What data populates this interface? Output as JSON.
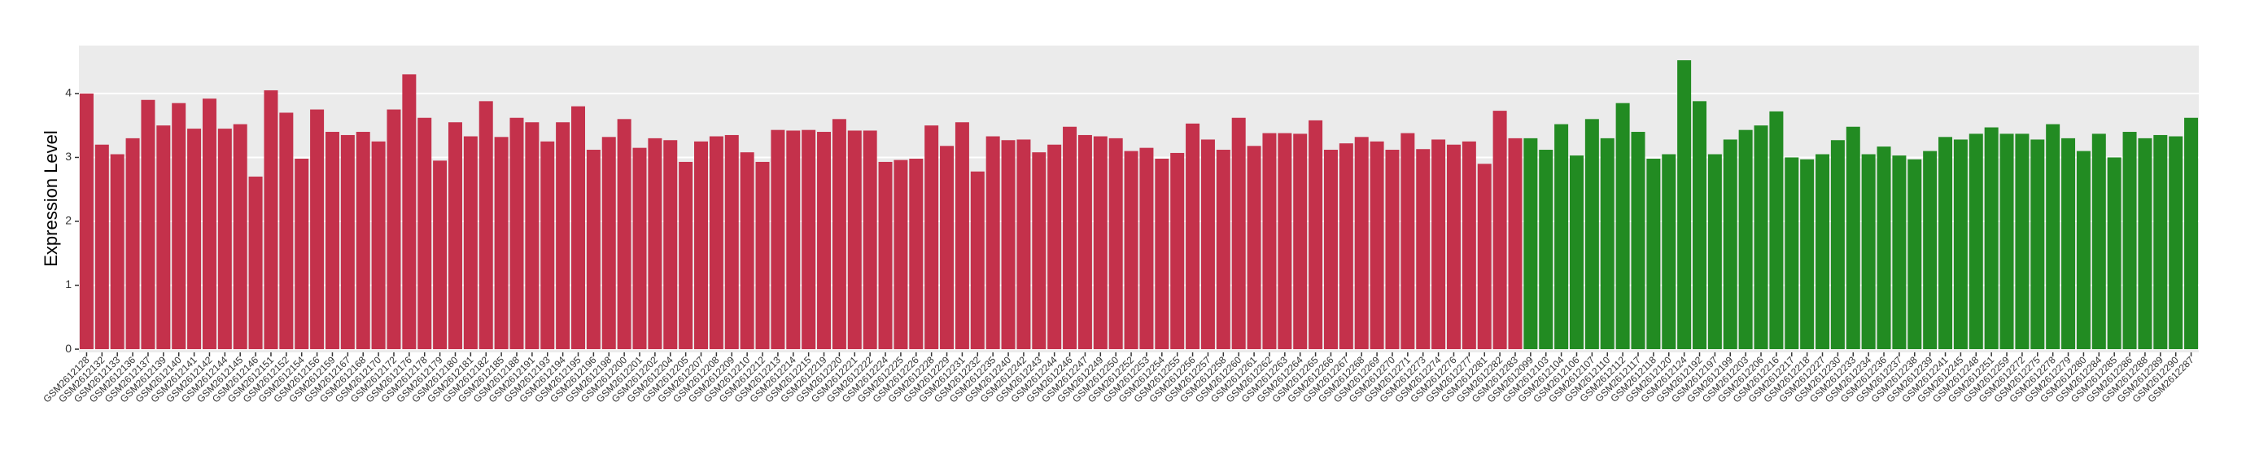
{
  "chart_data": {
    "type": "bar",
    "y_label": "Expression Level",
    "categories": [
      "GSM2612128",
      "GSM2612132",
      "GSM2612133",
      "GSM2612136",
      "GSM2612137",
      "GSM2612139",
      "GSM2612140",
      "GSM2612141",
      "GSM2612142",
      "GSM2612144",
      "GSM2612145",
      "GSM2612146",
      "GSM2612151",
      "GSM2612152",
      "GSM2612154",
      "GSM2612156",
      "GSM2612159",
      "GSM2612167",
      "GSM2612168",
      "GSM2612170",
      "GSM2612172",
      "GSM2612176",
      "GSM2612178",
      "GSM2612179",
      "GSM2612180",
      "GSM2612181",
      "GSM2612182",
      "GSM2612185",
      "GSM2612188",
      "GSM2612191",
      "GSM2612193",
      "GSM2612194",
      "GSM2612195",
      "GSM2612196",
      "GSM2612198",
      "GSM2612200",
      "GSM2612201",
      "GSM2612202",
      "GSM2612204",
      "GSM2612205",
      "GSM2612207",
      "GSM2612208",
      "GSM2612209",
      "GSM2612210",
      "GSM2612212",
      "GSM2612213",
      "GSM2612214",
      "GSM2612215",
      "GSM2612219",
      "GSM2612220",
      "GSM2612221",
      "GSM2612222",
      "GSM2612224",
      "GSM2612225",
      "GSM2612226",
      "GSM2612228",
      "GSM2612229",
      "GSM2612231",
      "GSM2612232",
      "GSM2612235",
      "GSM2612240",
      "GSM2612242",
      "GSM2612243",
      "GSM2612244",
      "GSM2612246",
      "GSM2612247",
      "GSM2612249",
      "GSM2612250",
      "GSM2612252",
      "GSM2612253",
      "GSM2612254",
      "GSM2612255",
      "GSM2612256",
      "GSM2612257",
      "GSM2612258",
      "GSM2612260",
      "GSM2612261",
      "GSM2612262",
      "GSM2612263",
      "GSM2612264",
      "GSM2612265",
      "GSM2612266",
      "GSM2612267",
      "GSM2612268",
      "GSM2612269",
      "GSM2612270",
      "GSM2612271",
      "GSM2612273",
      "GSM2612274",
      "GSM2612276",
      "GSM2612277",
      "GSM2612281",
      "GSM2612282",
      "GSM2612283",
      "GSM2612099",
      "GSM2612103",
      "GSM2612104",
      "GSM2612106",
      "GSM2612107",
      "GSM2612110",
      "GSM2612112",
      "GSM2612117",
      "GSM2612118",
      "GSM2612120",
      "GSM2612124",
      "GSM2612192",
      "GSM2612197",
      "GSM2612199",
      "GSM2612203",
      "GSM2612206",
      "GSM2612216",
      "GSM2612217",
      "GSM2612218",
      "GSM2612227",
      "GSM2612230",
      "GSM2612233",
      "GSM2612234",
      "GSM2612236",
      "GSM2612237",
      "GSM2612238",
      "GSM2612239",
      "GSM2612241",
      "GSM2612245",
      "GSM2612248",
      "GSM2612251",
      "GSM2612259",
      "GSM2612272",
      "GSM2612275",
      "GSM2612278",
      "GSM2612279",
      "GSM2612280",
      "GSM2612284",
      "GSM2612285",
      "GSM2612286",
      "GSM2612288",
      "GSM2612289",
      "GSM2612290",
      "GSM2612287"
    ],
    "values": [
      4.0,
      3.2,
      3.05,
      3.3,
      3.9,
      3.5,
      3.85,
      3.45,
      3.92,
      3.45,
      3.52,
      2.7,
      4.05,
      3.7,
      2.98,
      3.75,
      3.4,
      3.35,
      3.4,
      3.25,
      3.75,
      4.3,
      3.62,
      2.95,
      3.55,
      3.33,
      3.88,
      3.32,
      3.62,
      3.55,
      3.25,
      3.55,
      3.8,
      3.12,
      3.32,
      3.6,
      3.15,
      3.3,
      3.27,
      2.93,
      3.25,
      3.33,
      3.35,
      3.08,
      2.93,
      3.43,
      3.42,
      3.43,
      3.4,
      3.6,
      3.42,
      3.42,
      2.93,
      2.96,
      2.98,
      3.5,
      3.18,
      3.55,
      2.78,
      3.33,
      3.27,
      3.28,
      3.08,
      3.2,
      3.48,
      3.35,
      3.33,
      3.3,
      3.1,
      3.15,
      2.98,
      3.07,
      3.53,
      3.28,
      3.12,
      3.62,
      3.18,
      3.38,
      3.38,
      3.37,
      3.58,
      3.12,
      3.22,
      3.32,
      3.25,
      3.12,
      3.38,
      3.13,
      3.28,
      3.2,
      3.25,
      2.9,
      3.73,
      3.3,
      3.3,
      3.12,
      3.52,
      3.03,
      3.6,
      3.3,
      3.85,
      3.4,
      2.98,
      3.05,
      4.52,
      3.88,
      3.05,
      3.28,
      3.43,
      3.5,
      3.72,
      3.0,
      2.97,
      3.05,
      3.27,
      3.48,
      3.05,
      3.17,
      3.03,
      2.97,
      3.1,
      3.32,
      3.28,
      3.37,
      3.47,
      3.37,
      3.37,
      3.28,
      3.52,
      3.3,
      3.1,
      3.37,
      3.0,
      3.4,
      3.3,
      3.35,
      3.33,
      3.62
    ],
    "colors": [
      "#c4314b",
      "#c4314b",
      "#c4314b",
      "#c4314b",
      "#c4314b",
      "#c4314b",
      "#c4314b",
      "#c4314b",
      "#c4314b",
      "#c4314b",
      "#c4314b",
      "#c4314b",
      "#c4314b",
      "#c4314b",
      "#c4314b",
      "#c4314b",
      "#c4314b",
      "#c4314b",
      "#c4314b",
      "#c4314b",
      "#c4314b",
      "#c4314b",
      "#c4314b",
      "#c4314b",
      "#c4314b",
      "#c4314b",
      "#c4314b",
      "#c4314b",
      "#c4314b",
      "#c4314b",
      "#c4314b",
      "#c4314b",
      "#c4314b",
      "#c4314b",
      "#c4314b",
      "#c4314b",
      "#c4314b",
      "#c4314b",
      "#c4314b",
      "#c4314b",
      "#c4314b",
      "#c4314b",
      "#c4314b",
      "#c4314b",
      "#c4314b",
      "#c4314b",
      "#c4314b",
      "#c4314b",
      "#c4314b",
      "#c4314b",
      "#c4314b",
      "#c4314b",
      "#c4314b",
      "#c4314b",
      "#c4314b",
      "#c4314b",
      "#c4314b",
      "#c4314b",
      "#c4314b",
      "#c4314b",
      "#c4314b",
      "#c4314b",
      "#c4314b",
      "#c4314b",
      "#c4314b",
      "#c4314b",
      "#c4314b",
      "#c4314b",
      "#c4314b",
      "#c4314b",
      "#c4314b",
      "#c4314b",
      "#c4314b",
      "#c4314b",
      "#c4314b",
      "#c4314b",
      "#c4314b",
      "#c4314b",
      "#c4314b",
      "#c4314b",
      "#c4314b",
      "#c4314b",
      "#c4314b",
      "#c4314b",
      "#c4314b",
      "#c4314b",
      "#c4314b",
      "#c4314b",
      "#c4314b",
      "#c4314b",
      "#c4314b",
      "#c4314b",
      "#c4314b",
      "#c4314b",
      "#228b22",
      "#228b22",
      "#228b22",
      "#228b22",
      "#228b22",
      "#228b22",
      "#228b22",
      "#228b22",
      "#228b22",
      "#228b22",
      "#228b22",
      "#228b22",
      "#228b22",
      "#228b22",
      "#228b22",
      "#228b22",
      "#228b22",
      "#228b22",
      "#228b22",
      "#228b22",
      "#228b22",
      "#228b22",
      "#228b22",
      "#228b22",
      "#228b22",
      "#228b22",
      "#228b22",
      "#228b22",
      "#228b22",
      "#228b22",
      "#228b22",
      "#228b22",
      "#228b22",
      "#228b22",
      "#228b22",
      "#228b22",
      "#228b22",
      "#228b22",
      "#228b22",
      "#228b22",
      "#228b22",
      "#228b22",
      "#228b22",
      "#228b22"
    ],
    "ylim": [
      -0.05,
      4.75
    ],
    "yticks": [
      0,
      1,
      2,
      3,
      4
    ],
    "grid": true
  }
}
